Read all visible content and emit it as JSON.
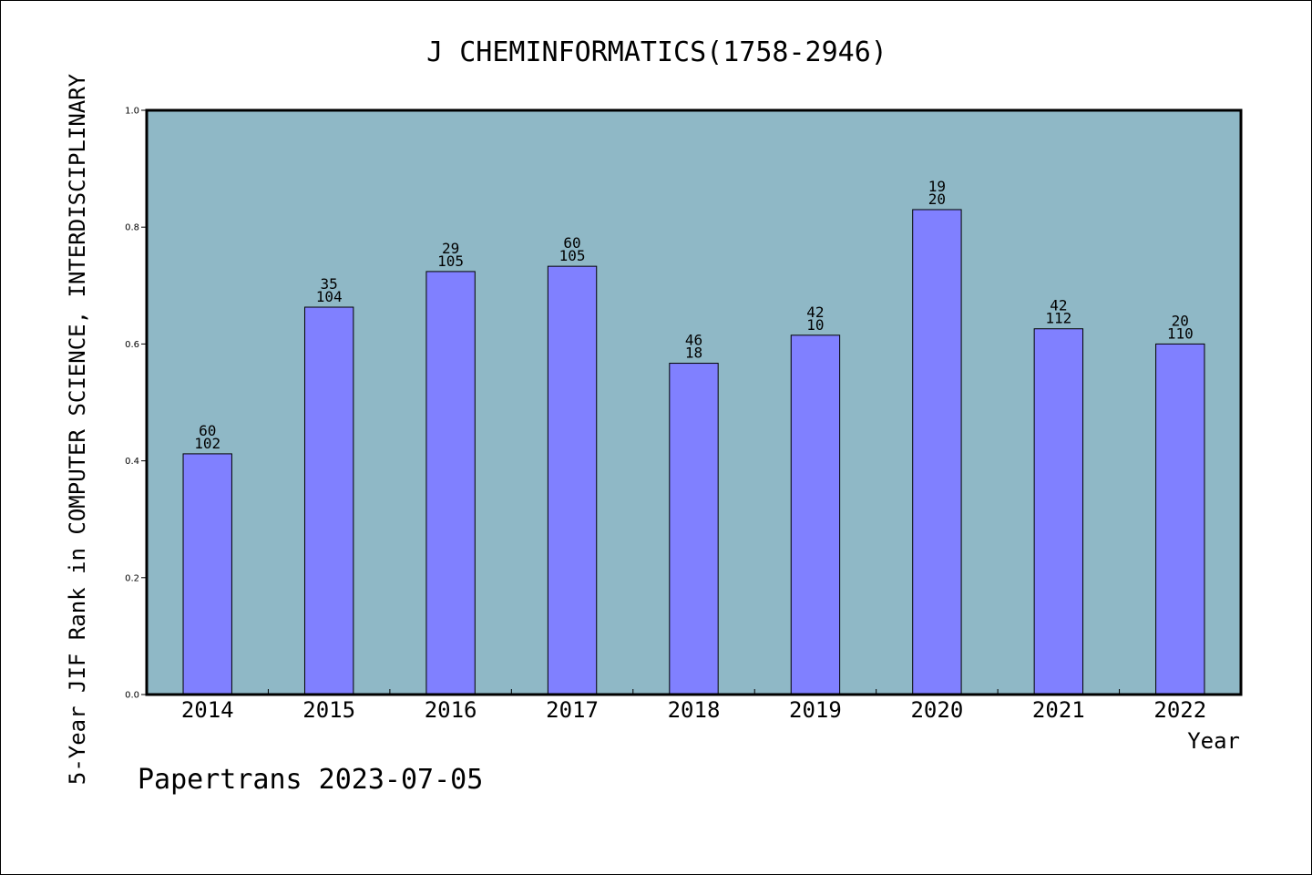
{
  "chart_data": {
    "type": "bar",
    "title": "J CHEMINFORMATICS(1758-2946)",
    "xlabel": "Year",
    "ylabel": "5-Year JIF Rank in COMPUTER SCIENCE,  INTERDISCIPLINARY",
    "categories": [
      "2014",
      "2015",
      "2016",
      "2017",
      "2018",
      "2019",
      "2020",
      "2021",
      "2022"
    ],
    "values": [
      0.412,
      0.663,
      0.724,
      0.733,
      0.567,
      0.615,
      0.83,
      0.626,
      0.6
    ],
    "bar_labels": [
      [
        "60",
        "102"
      ],
      [
        "35",
        "104"
      ],
      [
        "29",
        "105"
      ],
      [
        "60",
        "105"
      ],
      [
        "46",
        "18"
      ],
      [
        "42",
        "10"
      ],
      [
        "19",
        "20"
      ],
      [
        "42",
        "112"
      ],
      [
        "20",
        "110"
      ]
    ],
    "ylim": [
      0,
      1.0
    ],
    "yticks": [
      "0.0",
      "0.2",
      "0.4",
      "0.6",
      "0.8",
      "1.0"
    ],
    "grid": false,
    "colors": {
      "plot_background": "#8fb8c6",
      "bar_fill": "#8080ff",
      "bar_edge": "#000000"
    }
  },
  "footer": "Papertrans 2023-07-05"
}
